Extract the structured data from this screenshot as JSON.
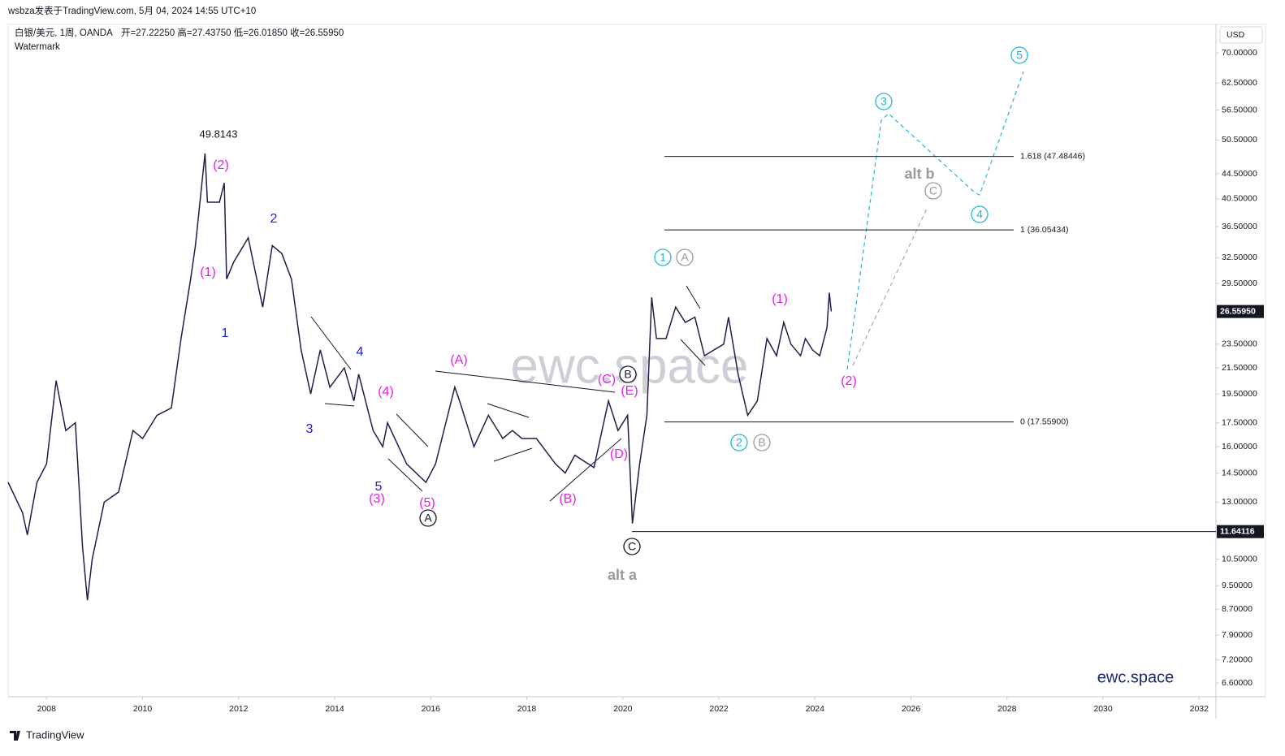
{
  "chart_data": {
    "type": "line",
    "header": {
      "publisher": "wsbza发表于TradingView.com, 5月 04, 2024 14:55 UTC+10",
      "symbol": "白银/美元, 1周, OANDA",
      "ohlc": "开=27.22250 高=27.43750 低=26.01850 收=26.55950",
      "indicator": "Watermark"
    },
    "currency": "USD",
    "watermark": "ewc.space",
    "brand": "ewc.space",
    "footer": "TradingView",
    "yscale": "log",
    "xlim": [
      2007.2,
      2032.35
    ],
    "ylim": [
      6.27,
      77.9
    ],
    "xticks": [
      2008,
      2010,
      2012,
      2014,
      2016,
      2018,
      2020,
      2022,
      2024,
      2026,
      2028,
      2030,
      2032
    ],
    "yticks": [
      {
        "value": 70,
        "label": "70.00000"
      },
      {
        "value": 62.5,
        "label": "62.50000"
      },
      {
        "value": 56.5,
        "label": "56.50000"
      },
      {
        "value": 50.5,
        "label": "50.50000"
      },
      {
        "value": 44.5,
        "label": "44.50000"
      },
      {
        "value": 40.5,
        "label": "40.50000"
      },
      {
        "value": 36.5,
        "label": "36.50000"
      },
      {
        "value": 32.5,
        "label": "32.50000"
      },
      {
        "value": 29.5,
        "label": "29.50000"
      },
      {
        "value": 23.5,
        "label": "23.50000"
      },
      {
        "value": 21.5,
        "label": "21.50000"
      },
      {
        "value": 19.5,
        "label": "19.50000"
      },
      {
        "value": 17.5,
        "label": "17.50000"
      },
      {
        "value": 16,
        "label": "16.00000"
      },
      {
        "value": 14.5,
        "label": "14.50000"
      },
      {
        "value": 13,
        "label": "13.00000"
      },
      {
        "value": 10.5,
        "label": "10.50000"
      },
      {
        "value": 9.5,
        "label": "9.50000"
      },
      {
        "value": 8.7,
        "label": "8.70000"
      },
      {
        "value": 7.9,
        "label": "7.90000"
      },
      {
        "value": 7.2,
        "label": "7.20000"
      },
      {
        "value": 6.6,
        "label": "6.60000"
      }
    ],
    "series": [
      {
        "name": "白银/美元",
        "color": "#1e1e4a",
        "x": [
          2007.2,
          2007.5,
          2007.6,
          2007.8,
          2008.0,
          2008.2,
          2008.4,
          2008.6,
          2008.75,
          2008.85,
          2008.95,
          2009.2,
          2009.5,
          2009.8,
          2010.0,
          2010.3,
          2010.6,
          2010.8,
          2011.0,
          2011.1,
          2011.3,
          2011.35,
          2011.6,
          2011.7,
          2011.75,
          2011.9,
          2012.2,
          2012.5,
          2012.7,
          2012.9,
          2013.1,
          2013.3,
          2013.5,
          2013.7,
          2013.9,
          2014.2,
          2014.4,
          2014.5,
          2014.8,
          2015.0,
          2015.1,
          2015.5,
          2015.9,
          2016.1,
          2016.5,
          2016.6,
          2016.9,
          2017.2,
          2017.5,
          2017.7,
          2017.9,
          2018.2,
          2018.6,
          2018.8,
          2019.0,
          2019.4,
          2019.6,
          2019.7,
          2019.9,
          2020.1,
          2020.2,
          2020.35,
          2020.5,
          2020.6,
          2020.7,
          2020.9,
          2021.1,
          2021.3,
          2021.5,
          2021.7,
          2021.9,
          2022.1,
          2022.2,
          2022.4,
          2022.6,
          2022.8,
          2023.0,
          2023.2,
          2023.35,
          2023.5,
          2023.7,
          2023.8,
          2023.95,
          2024.1,
          2024.25,
          2024.3,
          2024.34
        ],
        "values": [
          14.0,
          12.5,
          11.5,
          14,
          15,
          20.5,
          17,
          17.5,
          11,
          9,
          10.5,
          13,
          13.5,
          17,
          16.5,
          18,
          18.5,
          24,
          30,
          34,
          48,
          40,
          40,
          43,
          30,
          32,
          35,
          27,
          34,
          33,
          30,
          23,
          19.5,
          23,
          20,
          21.5,
          19,
          21,
          17,
          16,
          17.5,
          15,
          14,
          15,
          20,
          19,
          16,
          18,
          16.5,
          17,
          16.5,
          16.5,
          15,
          14.5,
          15.5,
          14.8,
          17.5,
          19,
          17,
          18,
          12,
          15,
          18,
          28,
          24,
          24,
          27,
          25.5,
          26,
          22.5,
          23,
          23.5,
          26,
          21,
          18,
          19,
          24,
          22.5,
          25.5,
          23.5,
          22.5,
          24,
          23,
          22.5,
          25,
          28.5,
          26.56
        ]
      }
    ],
    "last_price": {
      "value": 26.5595,
      "label": "26.55950"
    },
    "price_line": {
      "value": 11.64116,
      "label": "11.64116"
    },
    "fib_levels": [
      {
        "value": 47.48446,
        "label": "1.618 (47.48446)"
      },
      {
        "value": 36.05434,
        "label": "1 (36.05434)"
      },
      {
        "value": 17.559,
        "label": "0 (17.55900)"
      }
    ],
    "annotations": [
      "49.8143",
      "(2)",
      "(1)",
      "1",
      "2",
      "3",
      "4",
      "(4)",
      "5",
      "(3)",
      "(5)",
      "A",
      "(A)",
      "(B)",
      "(C)",
      "B",
      "(E)",
      "(D)",
      "C",
      "alt a",
      "1",
      "A",
      "(1)",
      "(2)",
      "2",
      "B",
      "3",
      "5",
      "4",
      "alt b",
      "C"
    ]
  }
}
